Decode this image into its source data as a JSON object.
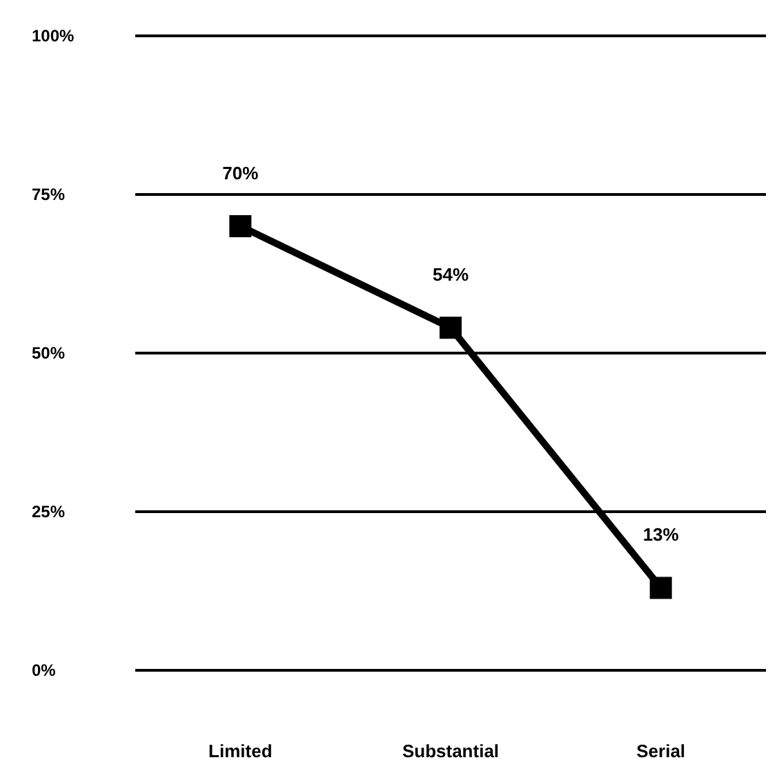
{
  "chart_data": {
    "type": "line",
    "categories": [
      "Limited",
      "Substantial",
      "Serial"
    ],
    "series": [
      {
        "color": "#000000",
        "values": [
          70,
          54,
          13
        ],
        "value_labels": [
          "70%",
          "54%",
          "13%"
        ]
      }
    ],
    "ylim": [
      0,
      100
    ],
    "yticks": [
      {
        "value": 0,
        "label": "0%"
      },
      {
        "value": 25,
        "label": "25%"
      },
      {
        "value": 50,
        "label": "50%"
      },
      {
        "value": 75,
        "label": "75%"
      },
      {
        "value": 100,
        "label": "100%"
      }
    ],
    "grid": "y",
    "marker": "square",
    "line_style": "solid"
  }
}
